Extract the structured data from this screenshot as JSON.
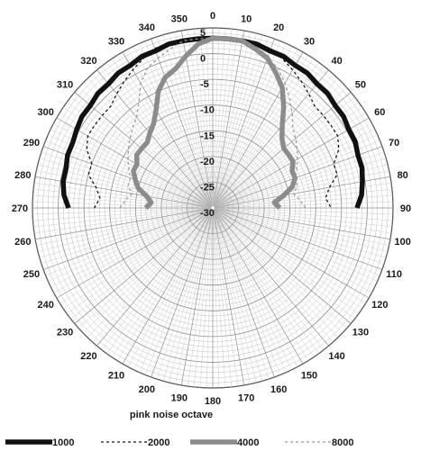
{
  "chart_data": {
    "type": "polar",
    "caption": "pink noise octave",
    "angle_labels": [
      "0",
      "10",
      "20",
      "30",
      "40",
      "50",
      "60",
      "70",
      "80",
      "90",
      "100",
      "110",
      "120",
      "130",
      "140",
      "150",
      "160",
      "170",
      "180",
      "190",
      "200",
      "210",
      "220",
      "230",
      "240",
      "250",
      "260",
      "270",
      "280",
      "290",
      "300",
      "310",
      "320",
      "330",
      "340",
      "350"
    ],
    "radial_labels": [
      "5",
      "0",
      "-5",
      "-10",
      "-15",
      "-20",
      "-25",
      "-30"
    ],
    "rlim": [
      -30,
      5
    ],
    "angle_step": 10,
    "grid": true,
    "legend_position": "bottom",
    "series": [
      {
        "name": "1000",
        "color": "#111111",
        "style": "solid-thick",
        "angles": [
          270,
          275,
          280,
          285,
          290,
          295,
          300,
          305,
          310,
          315,
          320,
          325,
          330,
          335,
          340,
          345,
          350,
          355,
          0,
          5,
          10,
          15,
          20,
          25,
          30,
          35,
          40,
          45,
          50,
          55,
          60,
          65,
          70,
          75,
          80,
          85,
          90
        ],
        "values": [
          -2,
          -1,
          -0.5,
          -0.5,
          0,
          0,
          0.5,
          1,
          1,
          1.5,
          1.5,
          2,
          2,
          2.5,
          2.5,
          3,
          3,
          3,
          3,
          3,
          3,
          3,
          2.5,
          2.5,
          2,
          2,
          1.5,
          1.5,
          1,
          1,
          0.5,
          0.5,
          0,
          0,
          -0.5,
          -1,
          -2
        ]
      },
      {
        "name": "2000",
        "color": "#111111",
        "style": "dashed-thin",
        "angles": [
          270,
          275,
          280,
          285,
          290,
          295,
          300,
          305,
          310,
          315,
          320,
          325,
          330,
          335,
          340,
          345,
          350,
          355,
          0,
          5,
          10,
          15,
          20,
          25,
          30,
          35,
          40,
          45,
          50,
          55,
          60,
          65,
          70,
          75,
          80,
          85,
          90
        ],
        "values": [
          -7,
          -8,
          -7,
          -5,
          -5,
          -3,
          -2,
          -2,
          -2,
          -2,
          -1,
          0,
          1,
          2,
          3,
          3,
          3,
          3,
          3,
          3,
          3,
          3,
          3,
          2,
          1,
          0,
          -1,
          -2,
          -2,
          -2,
          -2,
          -3,
          -5,
          -5,
          -7,
          -8,
          -7
        ]
      },
      {
        "name": "4000",
        "color": "#8c8c8c",
        "style": "solid-thick",
        "angles": [
          270,
          275,
          280,
          285,
          290,
          295,
          300,
          305,
          310,
          315,
          320,
          325,
          330,
          335,
          340,
          345,
          350,
          355,
          0,
          5,
          10,
          15,
          20,
          25,
          30,
          35,
          40,
          45,
          50,
          55,
          60,
          65,
          70,
          75,
          80,
          85,
          90
        ],
        "values": [
          -17,
          -18,
          -17,
          -15,
          -14,
          -13,
          -13,
          -12,
          -12,
          -12,
          -11,
          -10,
          -8,
          -5,
          -3,
          -2,
          0,
          2,
          3,
          3,
          3,
          2,
          1,
          -1,
          -3,
          -6,
          -9,
          -11,
          -12,
          -12,
          -12,
          -13,
          -13,
          -14,
          -16,
          -18,
          -17
        ]
      },
      {
        "name": "8000",
        "color": "#9a9a9a",
        "style": "dashed-thin",
        "angles": [
          270,
          275,
          280,
          285,
          290,
          295,
          300,
          305,
          310,
          315,
          320,
          325,
          330,
          335,
          340,
          345,
          350,
          355,
          0,
          5,
          10,
          15,
          20,
          25,
          30,
          35,
          40,
          45,
          50,
          55,
          60,
          65,
          70,
          75,
          80,
          85,
          90
        ],
        "values": [
          -12,
          -13,
          -14,
          -13,
          -13,
          -12,
          -11,
          -10,
          -9,
          -8,
          -7,
          -5,
          -2,
          0,
          1,
          2,
          3,
          3,
          3,
          3,
          3,
          2,
          1,
          0,
          -2,
          -4,
          -6,
          -8,
          -9,
          -10,
          -11,
          -12,
          -13,
          -13,
          -14,
          -13,
          -12
        ]
      }
    ]
  }
}
